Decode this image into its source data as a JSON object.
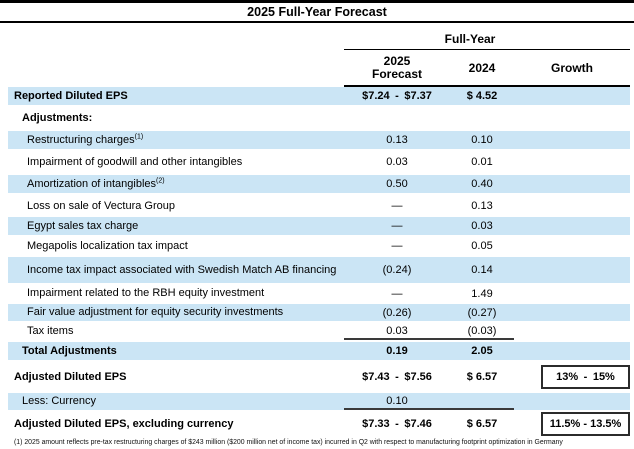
{
  "title": "2025 Full-Year Forecast",
  "header": {
    "group_label": "Full-Year",
    "col_2025_line1": "2025",
    "col_2025_line2": "Forecast",
    "col_2024": "2024",
    "col_growth": "Growth"
  },
  "accent_color": "#cbe5f5",
  "rows": [
    {
      "label": "Reported Diluted EPS",
      "sup": "",
      "v2025": "$7.24 - $7.37",
      "v2024": "$ 4.52",
      "growth": ""
    },
    {
      "label": "Adjustments:",
      "sup": "",
      "v2025": "",
      "v2024": "",
      "growth": ""
    },
    {
      "label": "Restructuring charges",
      "sup": "(1)",
      "v2025": "0.13",
      "v2024": "0.10",
      "growth": ""
    },
    {
      "label": "Impairment of goodwill and other intangibles",
      "sup": "",
      "v2025": "0.03",
      "v2024": "0.01",
      "growth": ""
    },
    {
      "label": "Amortization of intangibles",
      "sup": "(2)",
      "v2025": "0.50",
      "v2024": "0.40",
      "growth": ""
    },
    {
      "label": "Loss on sale of Vectura Group",
      "sup": "",
      "v2025": "—",
      "v2024": "0.13",
      "growth": ""
    },
    {
      "label": "Egypt sales tax charge",
      "sup": "",
      "v2025": "—",
      "v2024": "0.03",
      "growth": ""
    },
    {
      "label": "Megapolis localization tax impact",
      "sup": "",
      "v2025": "—",
      "v2024": "0.05",
      "growth": ""
    },
    {
      "label": "Income tax impact associated with Swedish Match AB financing",
      "sup": "",
      "v2025": "(0.24)",
      "v2024": "0.14",
      "growth": ""
    },
    {
      "label": "Impairment related to the RBH equity investment",
      "sup": "",
      "v2025": "—",
      "v2024": "1.49",
      "growth": ""
    },
    {
      "label": "Fair value adjustment for equity security investments",
      "sup": "",
      "v2025": "(0.26)",
      "v2024": "(0.27)",
      "growth": ""
    },
    {
      "label": "Tax items",
      "sup": "",
      "v2025": "0.03",
      "v2024": "(0.03)",
      "growth": ""
    },
    {
      "label": "Total Adjustments",
      "sup": "",
      "v2025": "0.19",
      "v2024": "2.05",
      "growth": ""
    },
    {
      "label": "Adjusted Diluted EPS",
      "sup": "",
      "v2025": "$7.43 - $7.56",
      "v2024": "$ 6.57",
      "growth": "13% - 15%"
    },
    {
      "label": "Less: Currency",
      "sup": "",
      "v2025": "0.10",
      "v2024": "",
      "growth": ""
    },
    {
      "label": "Adjusted Diluted EPS, excluding currency",
      "sup": "",
      "v2025": "$7.33 - $7.46",
      "v2024": "$ 6.57",
      "growth": "11.5% - 13.5%"
    }
  ],
  "footnote": "(1) 2025 amount reflects pre-tax restructuring charges of $243 million ($200 million net of income tax) incurred in Q2 with respect to manufacturing footprint optimization in Germany"
}
